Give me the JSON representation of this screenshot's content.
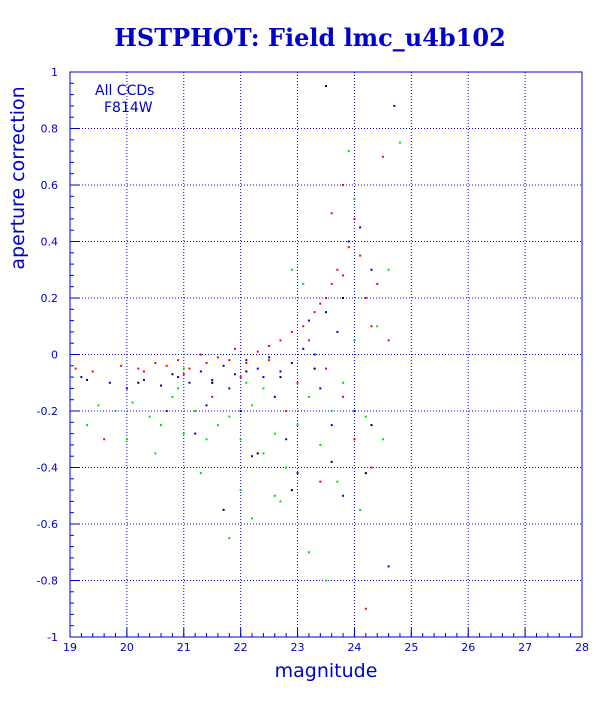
{
  "chart_data": {
    "type": "scatter",
    "title": "HSTPHOT: Field lmc_u4b102",
    "xlabel": "magnitude",
    "ylabel": "aperture correction",
    "xlim": [
      19,
      28
    ],
    "ylim": [
      -1,
      1
    ],
    "x_ticks": [
      "19",
      "20",
      "21",
      "22",
      "23",
      "24",
      "25",
      "26",
      "27",
      "28"
    ],
    "y_ticks": [
      "-1",
      "-0.8",
      "-0.6",
      "-0.4",
      "-0.2",
      "0",
      "0.2",
      "0.4",
      "0.6",
      "0.8",
      "1"
    ],
    "grid": true,
    "annotations": [
      "All CCDs",
      "F814W"
    ],
    "colors": {
      "axis": "#0000cc",
      "title": "#0000cc",
      "point_colors": [
        "#ff0000",
        "#00dd00",
        "#0000cc",
        "#000000"
      ]
    },
    "series": [
      {
        "color": "#ff0000",
        "points": [
          [
            19.1,
            -0.05
          ],
          [
            19.4,
            -0.06
          ],
          [
            19.9,
            -0.04
          ],
          [
            20.2,
            -0.05
          ],
          [
            20.5,
            -0.03
          ],
          [
            20.7,
            -0.04
          ],
          [
            20.9,
            -0.02
          ],
          [
            21.1,
            -0.05
          ],
          [
            21.3,
            0.0
          ],
          [
            21.4,
            -0.03
          ],
          [
            21.6,
            -0.01
          ],
          [
            21.8,
            -0.02
          ],
          [
            21.9,
            0.02
          ],
          [
            22.1,
            -0.03
          ],
          [
            22.3,
            0.01
          ],
          [
            22.5,
            0.03
          ],
          [
            22.7,
            0.05
          ],
          [
            22.9,
            0.08
          ],
          [
            23.1,
            0.1
          ],
          [
            23.3,
            0.15
          ],
          [
            23.4,
            0.18
          ],
          [
            23.5,
            0.2
          ],
          [
            23.6,
            0.25
          ],
          [
            23.7,
            0.3
          ],
          [
            23.8,
            0.28
          ],
          [
            23.9,
            0.38
          ],
          [
            24.0,
            0.48
          ],
          [
            24.1,
            0.35
          ],
          [
            24.2,
            0.2
          ],
          [
            24.3,
            0.1
          ],
          [
            23.5,
            -0.05
          ],
          [
            23.8,
            -0.15
          ],
          [
            24.0,
            -0.3
          ],
          [
            24.3,
            -0.4
          ],
          [
            22.0,
            -0.08
          ],
          [
            22.5,
            -0.02
          ],
          [
            23.2,
            0.05
          ],
          [
            20.3,
            -0.06
          ],
          [
            21.0,
            -0.07
          ],
          [
            19.6,
            -0.3
          ],
          [
            23.6,
            0.5
          ],
          [
            23.8,
            0.6
          ],
          [
            24.5,
            0.7
          ],
          [
            23.4,
            -0.45
          ],
          [
            24.2,
            -0.9
          ],
          [
            22.8,
            -0.2
          ],
          [
            21.5,
            -0.15
          ],
          [
            24.4,
            0.25
          ],
          [
            24.6,
            0.05
          ],
          [
            23.0,
            -0.1
          ]
        ]
      },
      {
        "color": "#00dd00",
        "points": [
          [
            19.5,
            -0.18
          ],
          [
            19.8,
            -0.2
          ],
          [
            20.1,
            -0.17
          ],
          [
            20.4,
            -0.22
          ],
          [
            20.6,
            -0.25
          ],
          [
            20.8,
            -0.15
          ],
          [
            21.0,
            -0.28
          ],
          [
            21.2,
            -0.2
          ],
          [
            21.4,
            -0.3
          ],
          [
            21.6,
            -0.25
          ],
          [
            21.8,
            -0.22
          ],
          [
            22.0,
            -0.3
          ],
          [
            22.2,
            -0.18
          ],
          [
            22.4,
            -0.35
          ],
          [
            22.6,
            -0.28
          ],
          [
            22.8,
            -0.4
          ],
          [
            23.0,
            -0.25
          ],
          [
            23.2,
            -0.15
          ],
          [
            23.4,
            -0.32
          ],
          [
            23.6,
            -0.2
          ],
          [
            23.8,
            -0.1
          ],
          [
            24.0,
            0.05
          ],
          [
            24.2,
            -0.22
          ],
          [
            24.4,
            0.1
          ],
          [
            24.6,
            0.3
          ],
          [
            24.8,
            0.75
          ],
          [
            22.9,
            0.3
          ],
          [
            23.1,
            0.25
          ],
          [
            22.6,
            -0.5
          ],
          [
            22.2,
            -0.58
          ],
          [
            21.8,
            -0.65
          ],
          [
            23.2,
            -0.7
          ],
          [
            23.5,
            -0.8
          ],
          [
            21.0,
            -0.05
          ],
          [
            21.5,
            -0.1
          ],
          [
            22.4,
            -0.12
          ],
          [
            23.7,
            -0.45
          ],
          [
            24.1,
            -0.55
          ],
          [
            20.5,
            -0.35
          ],
          [
            21.3,
            -0.42
          ],
          [
            22.0,
            -0.48
          ],
          [
            22.7,
            -0.52
          ],
          [
            19.3,
            -0.25
          ],
          [
            20.0,
            -0.3
          ],
          [
            24.5,
            -0.3
          ],
          [
            24.0,
            0.55
          ],
          [
            23.9,
            0.72
          ],
          [
            23.3,
            -0.05
          ],
          [
            20.9,
            -0.12
          ],
          [
            22.1,
            -0.1
          ]
        ]
      },
      {
        "color": "#0000cc",
        "points": [
          [
            19.2,
            -0.08
          ],
          [
            19.7,
            -0.1
          ],
          [
            20.0,
            -0.12
          ],
          [
            20.3,
            -0.09
          ],
          [
            20.6,
            -0.11
          ],
          [
            20.9,
            -0.08
          ],
          [
            21.1,
            -0.1
          ],
          [
            21.3,
            -0.06
          ],
          [
            21.5,
            -0.09
          ],
          [
            21.7,
            -0.04
          ],
          [
            21.9,
            -0.07
          ],
          [
            22.1,
            -0.02
          ],
          [
            22.3,
            -0.05
          ],
          [
            22.5,
            -0.01
          ],
          [
            22.7,
            -0.06
          ],
          [
            22.9,
            -0.03
          ],
          [
            23.1,
            0.02
          ],
          [
            23.3,
            0.0
          ],
          [
            23.5,
            0.15
          ],
          [
            23.7,
            0.08
          ],
          [
            23.9,
            0.4
          ],
          [
            24.1,
            0.45
          ],
          [
            24.3,
            0.3
          ],
          [
            24.7,
            0.88
          ],
          [
            23.4,
            -0.12
          ],
          [
            22.6,
            -0.15
          ],
          [
            22.0,
            -0.2
          ],
          [
            21.4,
            -0.18
          ],
          [
            22.8,
            -0.3
          ],
          [
            23.6,
            -0.25
          ],
          [
            24.0,
            -0.2
          ],
          [
            21.8,
            -0.12
          ],
          [
            22.4,
            -0.08
          ],
          [
            23.0,
            -0.42
          ],
          [
            23.8,
            -0.5
          ],
          [
            24.6,
            -0.75
          ],
          [
            20.7,
            -0.2
          ],
          [
            21.2,
            -0.28
          ],
          [
            22.2,
            -0.36
          ],
          [
            23.2,
            0.12
          ]
        ]
      },
      {
        "color": "#000000",
        "points": [
          [
            19.3,
            -0.09
          ],
          [
            20.2,
            -0.1
          ],
          [
            20.8,
            -0.07
          ],
          [
            21.5,
            -0.1
          ],
          [
            22.1,
            -0.06
          ],
          [
            22.7,
            -0.08
          ],
          [
            23.3,
            -0.05
          ],
          [
            23.5,
            0.95
          ],
          [
            23.8,
            0.2
          ],
          [
            24.2,
            -0.42
          ],
          [
            22.3,
            -0.35
          ],
          [
            21.7,
            -0.55
          ],
          [
            22.9,
            -0.48
          ],
          [
            23.6,
            -0.38
          ],
          [
            24.3,
            -0.25
          ]
        ]
      }
    ]
  }
}
